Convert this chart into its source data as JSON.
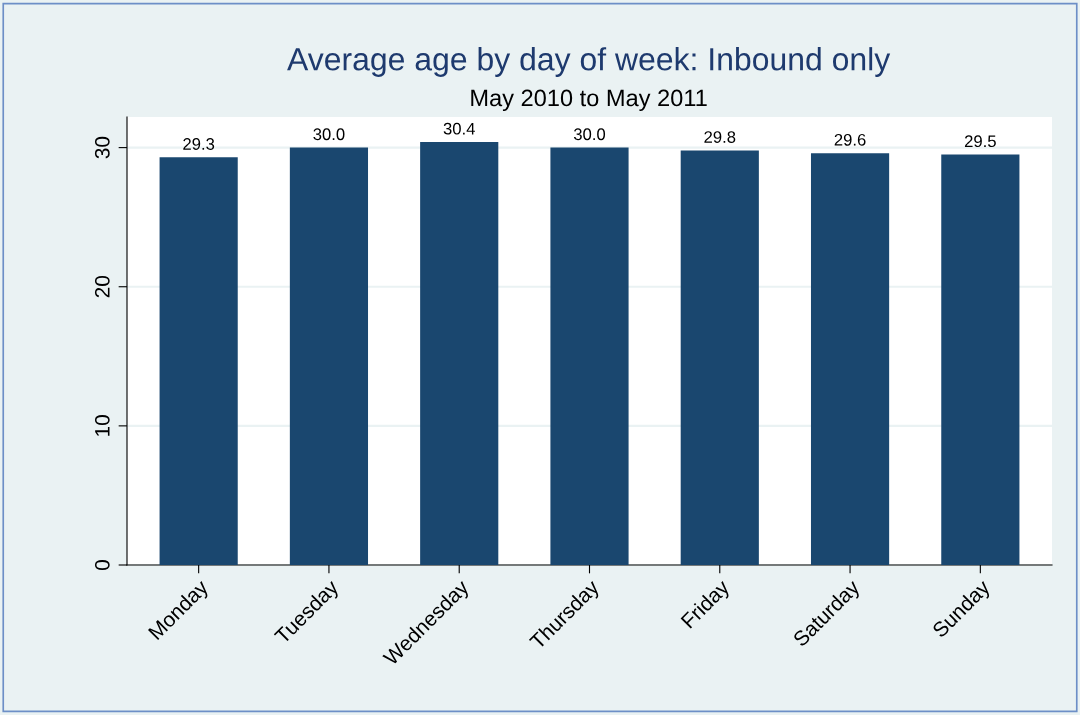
{
  "chart_data": {
    "type": "bar",
    "title": "Average age by day of week: Inbound only",
    "subtitle": "May 2010 to May 2011",
    "categories": [
      "Monday",
      "Tuesday",
      "Wednesday",
      "Thursday",
      "Friday",
      "Saturday",
      "Sunday"
    ],
    "values": [
      29.3,
      30.0,
      30.4,
      30.0,
      29.8,
      29.6,
      29.5
    ],
    "value_labels": [
      "29.3",
      "30.0",
      "30.4",
      "30.0",
      "29.8",
      "29.6",
      "29.5"
    ],
    "color": "#1a476f",
    "ylim": [
      0,
      32.2
    ],
    "yticks": [
      0,
      10,
      20,
      30
    ],
    "grid": "y",
    "legend": false
  }
}
